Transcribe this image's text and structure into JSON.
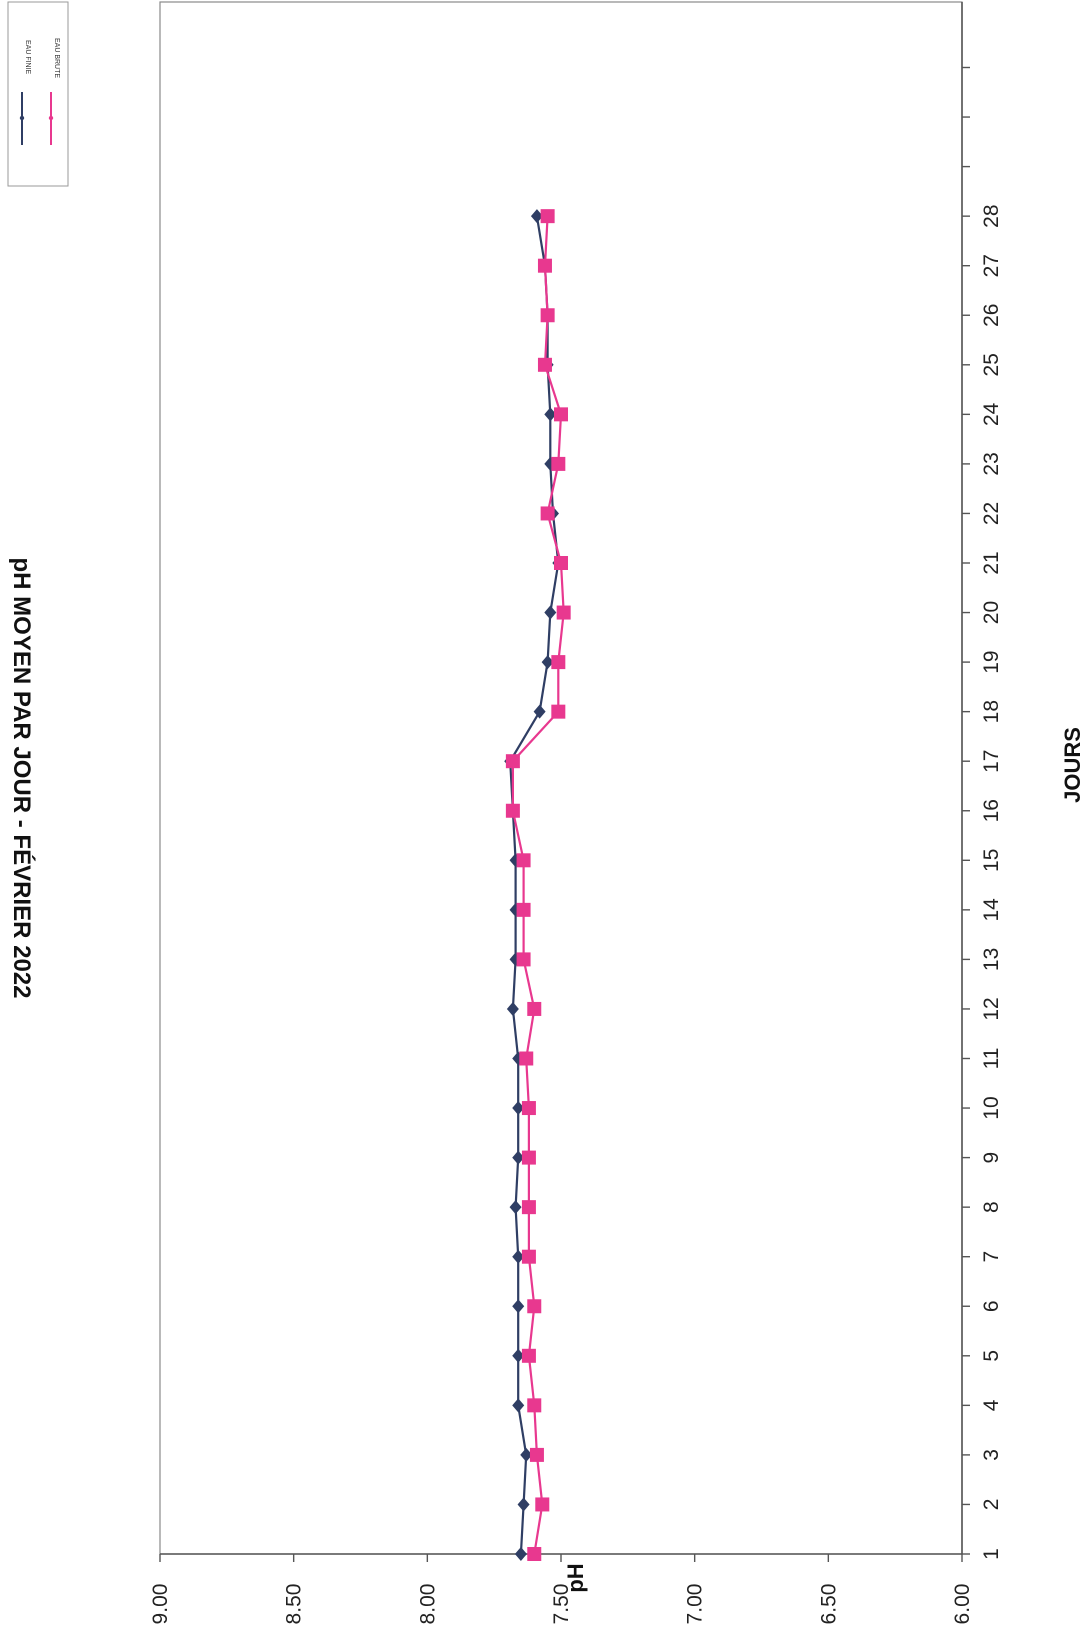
{
  "chart_data": {
    "type": "line",
    "title": "pH MOYEN PAR JOUR - FÉVRIER 2022",
    "xlabel": "JOURS",
    "ylabel": "pH",
    "orientation": "rotated-90-clockwise",
    "ylim": [
      6.0,
      9.0
    ],
    "yticks": [
      "6.00",
      "6.50",
      "7.00",
      "7.50",
      "8.00",
      "8.50",
      "9.00"
    ],
    "xlim": [
      1,
      30
    ],
    "categories": [
      "1",
      "2",
      "3",
      "4",
      "5",
      "6",
      "7",
      "8",
      "9",
      "10",
      "11",
      "12",
      "13",
      "14",
      "15",
      "16",
      "17",
      "18",
      "19",
      "20",
      "21",
      "22",
      "23",
      "24",
      "25",
      "26",
      "27",
      "28"
    ],
    "series": [
      {
        "name": "EAU FINIE",
        "color": "#2f3e64",
        "marker": "diamond",
        "values": [
          7.65,
          7.64,
          7.63,
          7.66,
          7.66,
          7.66,
          7.66,
          7.67,
          7.66,
          7.66,
          7.66,
          7.68,
          7.67,
          7.67,
          7.67,
          7.68,
          7.69,
          7.58,
          7.55,
          7.54,
          7.51,
          7.53,
          7.54,
          7.54,
          7.55,
          7.55,
          7.56,
          7.59
        ]
      },
      {
        "name": "EAU BRUTE",
        "color": "#e8388f",
        "marker": "square",
        "values": [
          7.6,
          7.57,
          7.59,
          7.6,
          7.62,
          7.6,
          7.62,
          7.62,
          7.62,
          7.62,
          7.63,
          7.6,
          7.64,
          7.64,
          7.64,
          7.68,
          7.68,
          7.51,
          7.51,
          7.49,
          7.5,
          7.55,
          7.51,
          7.5,
          7.56,
          7.55,
          7.56,
          7.55
        ]
      }
    ],
    "legend": {
      "position": "top-right",
      "entries": [
        "EAU FINIE",
        "EAU BRUTE"
      ]
    },
    "grid": false
  }
}
